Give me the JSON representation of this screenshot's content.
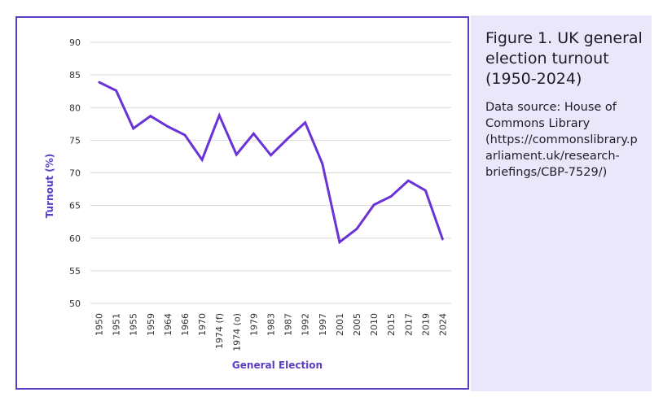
{
  "figure": {
    "title": "Figure 1. UK general election turnout (1950-2024)",
    "source": "Data source: House of Commons Library (https://commonslibrary.parliament.uk/research-briefings/CBP-7529/)"
  },
  "colors": {
    "line": "#6a33d6",
    "accent": "#5b3cc4",
    "grid": "#d9d9d9",
    "panel": "#ebe7fb"
  },
  "chart_data": {
    "type": "line",
    "title": "",
    "xlabel": "General Election",
    "ylabel": "Turnout (%)",
    "ylim": [
      50,
      90
    ],
    "yticks": [
      50,
      55,
      60,
      65,
      70,
      75,
      80,
      85,
      90
    ],
    "grid": true,
    "categories": [
      "1950",
      "1951",
      "1955",
      "1959",
      "1964",
      "1966",
      "1970",
      "1974 (f)",
      "1974 (o)",
      "1979",
      "1983",
      "1987",
      "1992",
      "1997",
      "2001",
      "2005",
      "2010",
      "2015",
      "2017",
      "2019",
      "2024"
    ],
    "series": [
      {
        "name": "Turnout",
        "values": [
          83.9,
          82.6,
          76.8,
          78.7,
          77.1,
          75.8,
          72.0,
          78.8,
          72.8,
          76.0,
          72.7,
          75.3,
          77.7,
          71.4,
          59.4,
          61.4,
          65.1,
          66.4,
          68.8,
          67.3,
          59.8
        ]
      }
    ]
  }
}
